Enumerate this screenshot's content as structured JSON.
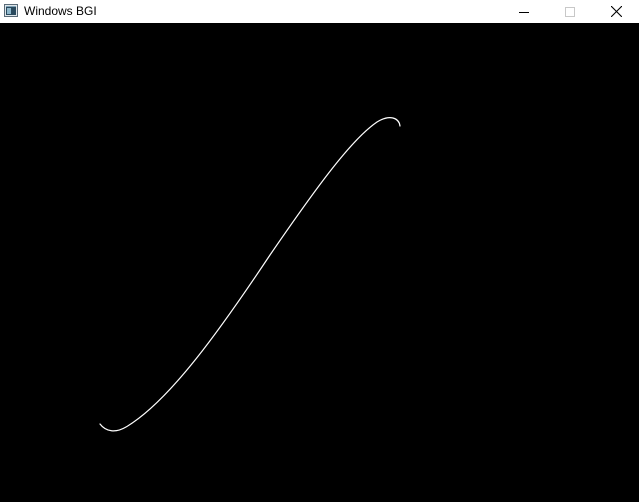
{
  "window": {
    "title": "Windows BGI",
    "icon": "bgi-app-icon",
    "controls": {
      "minimize_icon": "minimize-icon",
      "maximize_icon": "maximize-icon",
      "close_icon": "close-icon"
    }
  },
  "canvas": {
    "background_color": "#000000",
    "curve_color": "#ffffff",
    "curve_description": "s-curve"
  }
}
